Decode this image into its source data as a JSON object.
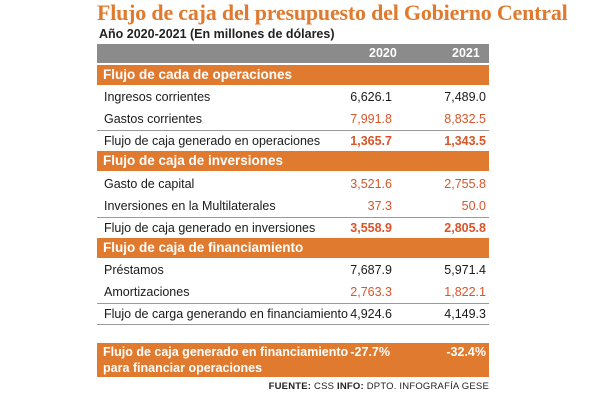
{
  "title": "Flujo de caja del presupuesto del Gobierno Central",
  "subtitle": "Año 2020-2021 (En millones de dólares)",
  "years": [
    "2020",
    "2021"
  ],
  "sections": [
    {
      "heading": "Flujo de cada de operaciones",
      "rows": [
        {
          "label": "Ingresos corrientes",
          "v2020": "6,626.1",
          "v2021": "7,489.0"
        },
        {
          "label": "Gastos corrientes",
          "v2020": "7,991.8",
          "v2021": "8,832.5"
        },
        {
          "label": "Flujo de caja generado en operaciones",
          "v2020": "1,365.7",
          "v2021": "1,343.5"
        }
      ]
    },
    {
      "heading": "Flujo de caja de inversiones",
      "rows": [
        {
          "label": "Gasto de capital",
          "v2020": "3,521.6",
          "v2021": "2,755.8"
        },
        {
          "label": "Inversiones en la Multilaterales",
          "v2020": "37.3",
          "v2021": "50.0"
        },
        {
          "label": "Flujo de caja generado en inversiones",
          "v2020": "3,558.9",
          "v2021": "2,805.8"
        }
      ]
    },
    {
      "heading": "Flujo de caja de financiamiento",
      "rows": [
        {
          "label": "Préstamos",
          "v2020": "7,687.9",
          "v2021": "5,971.4"
        },
        {
          "label": "Amortizaciones",
          "v2020": "2,763.3",
          "v2021": "1,822.1"
        },
        {
          "label": "Flujo de carga generando en financiamiento",
          "v2020": "4,924.6",
          "v2021": "4,149.3"
        }
      ]
    }
  ],
  "footer": {
    "line1": "Flujo de caja generado en financiamiento",
    "line2": "para financiar operaciones",
    "v2020": "-27.7%",
    "v2021": "-32.4%"
  },
  "source": {
    "fuente_label": "FUENTE:",
    "fuente": "CSS",
    "info_label": "INFO:",
    "info": "DPTO. INFOGRAFÍA GESE"
  },
  "colors": {
    "accent": "#e07a2f",
    "negative": "#d8552a",
    "header_bar": "#8b8b8b"
  }
}
